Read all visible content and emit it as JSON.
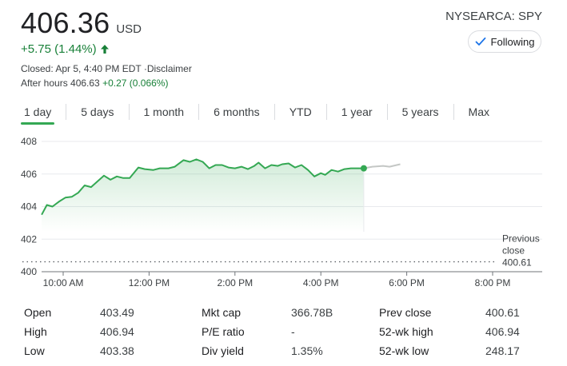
{
  "quote": {
    "price": "406.36",
    "currency": "USD",
    "change": "+5.75 (1.44%)",
    "closed_text": "Closed: Apr 5, 4:40 PM EDT ·Disclaimer",
    "after_hours_label": "After hours 406.63 ",
    "after_hours_change": "+0.27 (0.066%)",
    "ticker": "NYSEARCA: SPY",
    "follow_label": "Following",
    "colors": {
      "up": "#188038",
      "accent_line": "#34a853",
      "follow_check": "#1a73e8"
    }
  },
  "tabs": [
    {
      "label": "1 day",
      "active": true
    },
    {
      "label": "5 days"
    },
    {
      "label": "1 month"
    },
    {
      "label": "6 months"
    },
    {
      "label": "YTD"
    },
    {
      "label": "1 year"
    },
    {
      "label": "5 years"
    },
    {
      "label": "Max"
    }
  ],
  "chart_data": {
    "type": "line",
    "y_ticks": [
      "408",
      "406",
      "404",
      "402",
      "400"
    ],
    "x_ticks": [
      "10:00 AM",
      "12:00 PM",
      "2:00 PM",
      "4:00 PM",
      "6:00 PM",
      "8:00 PM"
    ],
    "ylim": [
      400,
      408
    ],
    "previous_close": {
      "label_line1": "Previous",
      "label_line2": "close",
      "value": "400.61"
    },
    "series": [
      {
        "session": "regular",
        "points": [
          [
            9.5,
            403.5
          ],
          [
            9.62,
            404.1
          ],
          [
            9.75,
            404.0
          ],
          [
            9.9,
            404.3
          ],
          [
            10.05,
            404.55
          ],
          [
            10.2,
            404.6
          ],
          [
            10.35,
            404.85
          ],
          [
            10.5,
            405.3
          ],
          [
            10.65,
            405.2
          ],
          [
            10.8,
            405.55
          ],
          [
            10.95,
            405.9
          ],
          [
            11.1,
            405.65
          ],
          [
            11.25,
            405.85
          ],
          [
            11.4,
            405.75
          ],
          [
            11.55,
            405.75
          ],
          [
            11.75,
            406.4
          ],
          [
            11.9,
            406.3
          ],
          [
            12.1,
            406.25
          ],
          [
            12.25,
            406.35
          ],
          [
            12.45,
            406.35
          ],
          [
            12.6,
            406.45
          ],
          [
            12.8,
            406.85
          ],
          [
            12.95,
            406.75
          ],
          [
            13.1,
            406.9
          ],
          [
            13.25,
            406.75
          ],
          [
            13.4,
            406.35
          ],
          [
            13.55,
            406.55
          ],
          [
            13.7,
            406.55
          ],
          [
            13.85,
            406.4
          ],
          [
            14.0,
            406.35
          ],
          [
            14.15,
            406.45
          ],
          [
            14.3,
            406.3
          ],
          [
            14.45,
            406.5
          ],
          [
            14.55,
            406.7
          ],
          [
            14.7,
            406.35
          ],
          [
            14.85,
            406.55
          ],
          [
            15.0,
            406.5
          ],
          [
            15.1,
            406.6
          ],
          [
            15.25,
            406.65
          ],
          [
            15.4,
            406.4
          ],
          [
            15.55,
            406.55
          ],
          [
            15.7,
            406.25
          ],
          [
            15.85,
            405.85
          ],
          [
            16.0,
            406.05
          ],
          [
            16.1,
            405.95
          ],
          [
            16.25,
            406.25
          ],
          [
            16.4,
            406.15
          ],
          [
            16.55,
            406.3
          ],
          [
            16.7,
            406.35
          ],
          [
            17.0,
            406.35
          ]
        ]
      },
      {
        "session": "after_hours",
        "points": [
          [
            17.0,
            406.35
          ],
          [
            17.2,
            406.45
          ],
          [
            17.45,
            406.5
          ],
          [
            17.6,
            406.45
          ],
          [
            17.85,
            406.6
          ]
        ]
      }
    ],
    "grid": true
  },
  "stats": {
    "columns": [
      {
        "rows": [
          {
            "label": "Open",
            "value": "403.49"
          },
          {
            "label": "High",
            "value": "406.94"
          },
          {
            "label": "Low",
            "value": "403.38"
          }
        ]
      },
      {
        "rows": [
          {
            "label": "Mkt cap",
            "value": "366.78B"
          },
          {
            "label": "P/E ratio",
            "value": "-"
          },
          {
            "label": "Div yield",
            "value": "1.35%"
          }
        ]
      },
      {
        "rows": [
          {
            "label": "Prev close",
            "value": "400.61"
          },
          {
            "label": "52-wk high",
            "value": "406.94"
          },
          {
            "label": "52-wk low",
            "value": "248.17"
          }
        ]
      }
    ]
  }
}
